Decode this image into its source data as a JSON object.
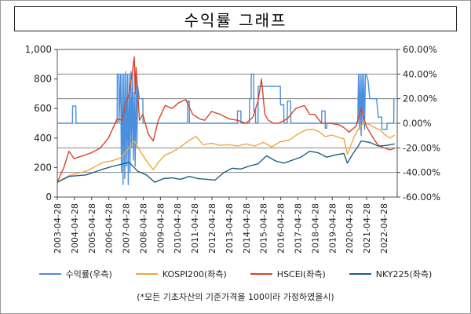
{
  "title": "수익률 그래프",
  "footnote": "(*모든 기초자산의 기준가격을 100이라 가정하였을시)",
  "chart_data": {
    "type": "line",
    "x_categories": [
      "2003-04-28",
      "2004-04-28",
      "2005-04-28",
      "2006-04-28",
      "2007-04-28",
      "2008-04-28",
      "2009-04-28",
      "2010-04-28",
      "2011-04-28",
      "2012-04-28",
      "2013-04-28",
      "2014-04-28",
      "2015-04-28",
      "2016-04-28",
      "2017-04-28",
      "2018-04-28",
      "2019-04-28",
      "2020-04-28",
      "2021-04-28",
      "2022-04-28"
    ],
    "left_axis": {
      "ylim": [
        0,
        1000
      ],
      "ticks": [
        "0",
        "200",
        "400",
        "600",
        "800",
        "1,000"
      ],
      "tick_values": [
        0,
        200,
        400,
        600,
        800,
        1000
      ]
    },
    "right_axis": {
      "ylim": [
        -60,
        60
      ],
      "ticks": [
        "-60.00%",
        "-40.00%",
        "-20.00%",
        "0.00%",
        "20.00%",
        "40.00%",
        "60.00%"
      ],
      "tick_values": [
        -60,
        -40,
        -20,
        0,
        20,
        40,
        60
      ]
    },
    "series": [
      {
        "name": "수익률(우측)",
        "axis": "right",
        "color": "#4a8fdc",
        "x": [
          2003.32,
          2004.2,
          2004.21,
          2004.4,
          2004.41,
          2006.8,
          2006.81,
          2006.9,
          2006.91,
          2007.0,
          2007.05,
          2007.1,
          2007.15,
          2007.2,
          2007.25,
          2007.3,
          2007.35,
          2007.4,
          2007.45,
          2007.5,
          2007.55,
          2007.6,
          2007.65,
          2007.7,
          2007.75,
          2007.8,
          2007.85,
          2007.9,
          2007.95,
          2008.0,
          2008.1,
          2008.3,
          2008.31,
          2010.9,
          2010.91,
          2011.0,
          2011.01,
          2013.8,
          2013.81,
          2014.0,
          2014.01,
          2014.5,
          2014.51,
          2014.6,
          2014.61,
          2014.75,
          2014.76,
          2014.85,
          2014.86,
          2015.0,
          2015.01,
          2016.3,
          2016.31,
          2016.5,
          2016.51,
          2016.7,
          2016.71,
          2016.9,
          2016.91,
          2018.7,
          2018.71,
          2018.9,
          2018.91,
          2019.0,
          2019.01,
          2020.8,
          2020.85,
          2020.9,
          2020.95,
          2021.0,
          2021.05,
          2021.1,
          2021.15,
          2021.2,
          2021.25,
          2021.3,
          2021.4,
          2021.5,
          2021.9,
          2022.0,
          2022.2,
          2022.21,
          2022.5,
          2022.51,
          2022.9,
          2022.91
        ],
        "y": [
          0,
          0,
          14,
          14,
          0,
          0,
          40,
          40,
          0,
          40,
          -40,
          40,
          -50,
          40,
          -45,
          42,
          -35,
          40,
          -50,
          40,
          -40,
          42,
          -20,
          40,
          -30,
          25,
          -35,
          40,
          -20,
          30,
          20,
          20,
          0,
          0,
          18,
          18,
          0,
          0,
          10,
          10,
          0,
          0,
          20,
          20,
          40,
          40,
          10,
          10,
          0,
          0,
          30,
          30,
          15,
          15,
          0,
          0,
          18,
          18,
          0,
          0,
          10,
          10,
          -4,
          -4,
          0,
          0,
          40,
          -5,
          40,
          -10,
          40,
          0,
          40,
          -5,
          40,
          40,
          35,
          20,
          20,
          5,
          5,
          -5,
          -5,
          0,
          0,
          20
        ]
      },
      {
        "name": "KOSPI200(좌측)",
        "axis": "left",
        "color": "#f0a640",
        "x": [
          2003.32,
          2004.0,
          2005.0,
          2005.5,
          2006.0,
          2006.5,
          2007.0,
          2007.5,
          2007.8,
          2008.2,
          2008.6,
          2008.9,
          2009.2,
          2009.6,
          2010.0,
          2010.5,
          2011.0,
          2011.4,
          2011.8,
          2012.3,
          2012.8,
          2013.3,
          2013.8,
          2014.3,
          2014.8,
          2015.3,
          2015.8,
          2016.3,
          2016.8,
          2017.3,
          2017.8,
          2018.2,
          2018.6,
          2018.9,
          2019.3,
          2019.8,
          2020.0,
          2020.2,
          2020.6,
          2020.9,
          2021.2,
          2021.5,
          2021.8,
          2022.1,
          2022.4,
          2022.7,
          2022.95
        ],
        "y": [
          100,
          145,
          175,
          205,
          235,
          245,
          265,
          335,
          380,
          300,
          230,
          185,
          235,
          285,
          305,
          340,
          385,
          410,
          355,
          365,
          350,
          355,
          345,
          360,
          345,
          370,
          340,
          375,
          385,
          425,
          455,
          460,
          440,
          410,
          420,
          400,
          395,
          290,
          410,
          470,
          505,
          490,
          470,
          455,
          420,
          400,
          420
        ]
      },
      {
        "name": "HSCEI(좌측)",
        "axis": "left",
        "color": "#d9432a",
        "x": [
          2003.32,
          2003.7,
          2004.0,
          2004.3,
          2004.8,
          2005.3,
          2005.8,
          2006.3,
          2006.8,
          2007.1,
          2007.3,
          2007.5,
          2007.7,
          2007.8,
          2007.85,
          2007.9,
          2008.0,
          2008.1,
          2008.3,
          2008.6,
          2008.9,
          2009.2,
          2009.6,
          2010.0,
          2010.4,
          2010.8,
          2011.2,
          2011.6,
          2011.9,
          2012.3,
          2012.8,
          2013.3,
          2013.8,
          2014.3,
          2014.7,
          2015.0,
          2015.2,
          2015.4,
          2015.6,
          2015.9,
          2016.2,
          2016.7,
          2017.2,
          2017.7,
          2018.0,
          2018.3,
          2018.7,
          2019.2,
          2019.7,
          2020.0,
          2020.3,
          2020.7,
          2021.0,
          2021.3,
          2021.7,
          2022.0,
          2022.4,
          2022.7,
          2022.95
        ],
        "y": [
          100,
          200,
          310,
          260,
          280,
          300,
          330,
          400,
          530,
          520,
          640,
          700,
          860,
          950,
          700,
          880,
          720,
          520,
          560,
          430,
          380,
          520,
          620,
          600,
          640,
          660,
          560,
          530,
          520,
          580,
          560,
          530,
          520,
          500,
          540,
          650,
          800,
          560,
          520,
          500,
          500,
          530,
          600,
          620,
          560,
          560,
          500,
          500,
          490,
          470,
          440,
          480,
          600,
          480,
          400,
          350,
          330,
          320,
          330
        ]
      },
      {
        "name": "NKY225(좌측)",
        "axis": "left",
        "color": "#1d5f82",
        "x": [
          2003.32,
          2004.0,
          2005.0,
          2006.0,
          2006.6,
          2007.0,
          2007.5,
          2008.0,
          2008.5,
          2009.0,
          2009.5,
          2010.0,
          2010.5,
          2011.0,
          2011.5,
          2012.0,
          2012.5,
          2013.0,
          2013.5,
          2014.0,
          2014.5,
          2015.0,
          2015.5,
          2016.0,
          2016.5,
          2017.0,
          2017.5,
          2018.0,
          2018.5,
          2019.0,
          2019.5,
          2020.0,
          2020.2,
          2020.5,
          2020.8,
          2021.0,
          2021.5,
          2022.0,
          2022.5,
          2022.95
        ],
        "y": [
          100,
          140,
          150,
          190,
          210,
          220,
          235,
          175,
          150,
          100,
          125,
          130,
          120,
          140,
          125,
          120,
          115,
          165,
          195,
          190,
          210,
          225,
          280,
          245,
          230,
          250,
          270,
          310,
          300,
          270,
          285,
          295,
          230,
          290,
          340,
          380,
          370,
          345,
          350,
          360
        ]
      }
    ]
  }
}
